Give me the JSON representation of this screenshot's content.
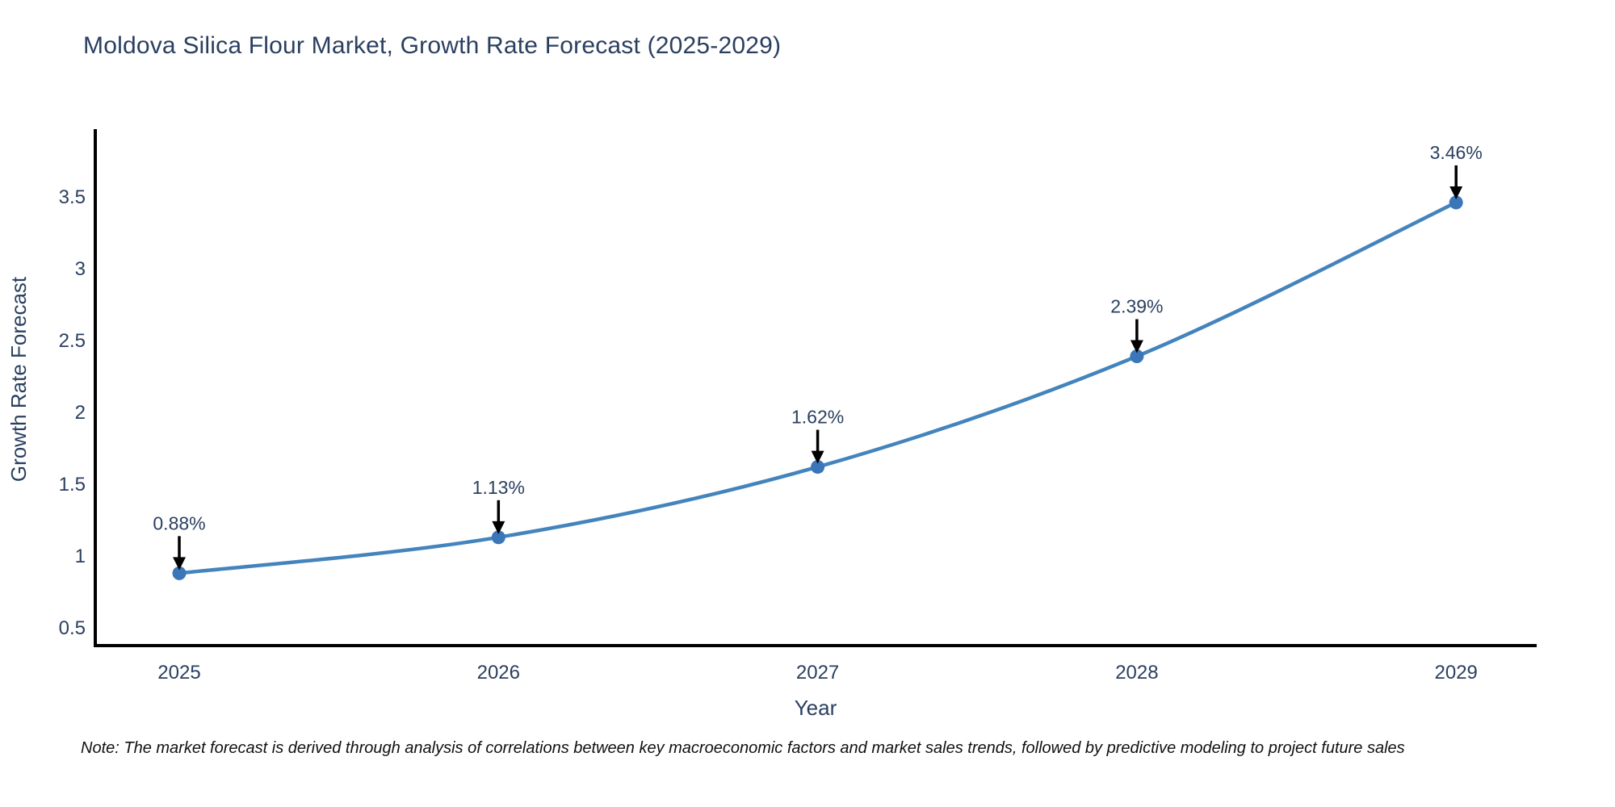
{
  "title": "Moldova Silica Flour Market, Growth Rate Forecast (2025-2029)",
  "note": "Note: The market forecast is derived through analysis of correlations between key macroeconomic factors and market sales trends, followed by predictive modeling to project future sales",
  "colors": {
    "line": "#4484bd",
    "marker": "#3a76b8",
    "axis": "#000000",
    "text": "#2a3f5f",
    "annotation_text": "#2a3f5f",
    "arrow": "#000000",
    "background": "#ffffff"
  },
  "chart_data": {
    "type": "line",
    "title": "Moldova Silica Flour Market, Growth Rate Forecast (2025-2029)",
    "xlabel": "Year",
    "ylabel": "Growth Rate Forecast",
    "x": [
      2025,
      2026,
      2027,
      2028,
      2029
    ],
    "x_labels": [
      "2025",
      "2026",
      "2027",
      "2028",
      "2029"
    ],
    "y": [
      0.88,
      1.13,
      1.62,
      2.39,
      3.46
    ],
    "point_labels": [
      "0.88%",
      "1.13%",
      "1.62%",
      "2.39%",
      "3.46%"
    ],
    "yticks": [
      0.5,
      1,
      1.5,
      2,
      2.5,
      3,
      3.5
    ],
    "ytick_labels": [
      "0.5",
      "1",
      "1.5",
      "2",
      "2.5",
      "3",
      "3.5"
    ],
    "ylim": [
      0.35,
      3.85
    ],
    "line_style": "spline",
    "markers": true,
    "annotations": "value labels with downward black arrows above each point",
    "grid": false,
    "legend": false
  }
}
